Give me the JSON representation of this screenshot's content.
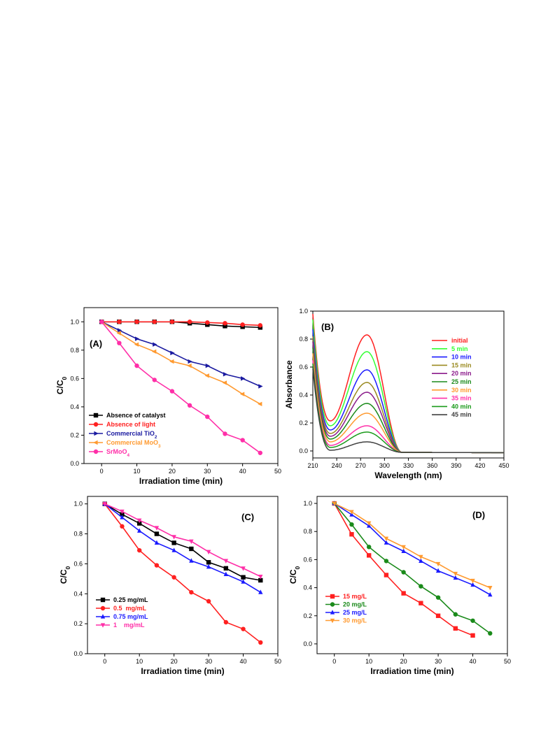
{
  "chart_data": [
    {
      "panel": "(A)",
      "type": "line",
      "xlabel": "Irradiation time (min)",
      "ylabel": "C/C0",
      "xlim": [
        -5,
        50
      ],
      "ylim": [
        0,
        1.1
      ],
      "xticks": [
        0,
        10,
        20,
        30,
        40,
        50
      ],
      "yticks": [
        0.0,
        0.2,
        0.4,
        0.6,
        0.8,
        1.0
      ],
      "legend": "bottom-left",
      "series": [
        {
          "name": "Absence of catalyst",
          "color": "#000000",
          "marker": "square",
          "x": [
            0,
            5,
            10,
            15,
            20,
            25,
            30,
            35,
            40,
            45
          ],
          "y": [
            1.0,
            1.0,
            1.0,
            1.0,
            1.0,
            0.99,
            0.98,
            0.97,
            0.965,
            0.96
          ]
        },
        {
          "name": "Absence of light",
          "color": "#ff2020",
          "marker": "circle",
          "x": [
            0,
            5,
            10,
            15,
            20,
            25,
            30,
            35,
            40,
            45
          ],
          "y": [
            1.0,
            1.0,
            1.0,
            1.0,
            1.0,
            1.0,
            0.995,
            0.99,
            0.98,
            0.975
          ]
        },
        {
          "name": "Commercial TiO2",
          "color": "#1a1aa0",
          "marker": "tri-right",
          "x": [
            0,
            5,
            10,
            15,
            20,
            25,
            30,
            35,
            40,
            45
          ],
          "y": [
            1.0,
            0.94,
            0.88,
            0.84,
            0.78,
            0.72,
            0.69,
            0.63,
            0.6,
            0.545
          ]
        },
        {
          "name": "Commercial MoO3",
          "color": "#ff9a30",
          "marker": "tri-left",
          "x": [
            0,
            5,
            10,
            15,
            20,
            25,
            30,
            35,
            40,
            45
          ],
          "y": [
            1.0,
            0.92,
            0.84,
            0.79,
            0.72,
            0.69,
            0.62,
            0.57,
            0.49,
            0.42
          ]
        },
        {
          "name": "SrMoO4",
          "color": "#ff2fa8",
          "marker": "circle",
          "x": [
            0,
            5,
            10,
            15,
            20,
            25,
            30,
            35,
            40,
            45
          ],
          "y": [
            1.0,
            0.85,
            0.69,
            0.59,
            0.51,
            0.41,
            0.33,
            0.21,
            0.165,
            0.075
          ]
        }
      ]
    },
    {
      "panel": "(B)",
      "type": "line",
      "xlabel": "Wavelength (nm)",
      "ylabel": "Absorbance",
      "xlim": [
        210,
        450
      ],
      "ylim": [
        -0.05,
        1.0
      ],
      "xticks": [
        210,
        240,
        270,
        300,
        330,
        360,
        390,
        420,
        450
      ],
      "yticks": [
        0.0,
        0.2,
        0.4,
        0.6,
        0.8,
        1.0
      ],
      "legend": "top-right",
      "peak_wavelength": 278,
      "series": [
        {
          "name": "initial",
          "color": "#ff2020",
          "peak": 0.83,
          "valley": 0.215
        },
        {
          "name": "5 min",
          "color": "#33ff33",
          "peak": 0.71,
          "valley": 0.18
        },
        {
          "name": "10 min",
          "color": "#1a1aff",
          "peak": 0.58,
          "valley": 0.15
        },
        {
          "name": "15 min",
          "color": "#9a8a20",
          "peak": 0.49,
          "valley": 0.125
        },
        {
          "name": "20 min",
          "color": "#8a1a8a",
          "peak": 0.42,
          "valley": 0.105
        },
        {
          "name": "25 min",
          "color": "#1a8a1a",
          "peak": 0.34,
          "valley": 0.085
        },
        {
          "name": "30 min",
          "color": "#ff9a30",
          "peak": 0.27,
          "valley": 0.065
        },
        {
          "name": "35 min",
          "color": "#ff2fa8",
          "peak": 0.18,
          "valley": 0.04
        },
        {
          "name": "40 min",
          "color": "#1a9a1a",
          "peak": 0.135,
          "valley": 0.025
        },
        {
          "name": "45 min",
          "color": "#404040",
          "peak": 0.065,
          "valley": 0.005
        }
      ]
    },
    {
      "panel": "(C)",
      "type": "line",
      "xlabel": "Irradiation time (min)",
      "ylabel": "C/C0",
      "xlim": [
        -5,
        50
      ],
      "ylim": [
        0,
        1.05
      ],
      "xticks": [
        0,
        10,
        20,
        30,
        40,
        50
      ],
      "yticks": [
        0.0,
        0.2,
        0.4,
        0.6,
        0.8,
        1.0
      ],
      "legend": "bottom-left",
      "series": [
        {
          "name": "0.25 mg/mL",
          "color": "#000000",
          "marker": "square",
          "x": [
            0,
            5,
            10,
            15,
            20,
            25,
            30,
            35,
            40,
            45
          ],
          "y": [
            1.0,
            0.93,
            0.87,
            0.8,
            0.74,
            0.7,
            0.61,
            0.57,
            0.51,
            0.49
          ]
        },
        {
          "name": "0.5  mg/mL",
          "color": "#ff2020",
          "marker": "circle",
          "x": [
            0,
            5,
            10,
            15,
            20,
            25,
            30,
            35,
            40,
            45
          ],
          "y": [
            1.0,
            0.85,
            0.69,
            0.59,
            0.51,
            0.41,
            0.35,
            0.21,
            0.165,
            0.075
          ]
        },
        {
          "name": "0.75 mg/mL",
          "color": "#1a1aff",
          "marker": "tri-up",
          "x": [
            0,
            5,
            10,
            15,
            20,
            25,
            30,
            35,
            40,
            45
          ],
          "y": [
            1.0,
            0.91,
            0.82,
            0.74,
            0.69,
            0.62,
            0.58,
            0.53,
            0.48,
            0.41
          ]
        },
        {
          "name": "1    mg/mL",
          "color": "#ff2fa8",
          "marker": "tri-down",
          "x": [
            0,
            5,
            10,
            15,
            20,
            25,
            30,
            35,
            40,
            45
          ],
          "y": [
            1.0,
            0.95,
            0.89,
            0.84,
            0.78,
            0.75,
            0.68,
            0.62,
            0.57,
            0.515
          ]
        }
      ]
    },
    {
      "panel": "(D)",
      "type": "line",
      "xlabel": "Irradiation time (min)",
      "ylabel": "C/C0",
      "xlim": [
        -5,
        50
      ],
      "ylim": [
        -0.07,
        1.05
      ],
      "xticks": [
        0,
        10,
        20,
        30,
        40,
        50
      ],
      "yticks": [
        0.0,
        0.2,
        0.4,
        0.6,
        0.8,
        1.0
      ],
      "legend": "bottom-left",
      "series": [
        {
          "name": "15 mg/L",
          "color": "#ff2020",
          "marker": "square",
          "x": [
            0,
            5,
            10,
            15,
            20,
            25,
            30,
            35,
            40
          ],
          "y": [
            1.0,
            0.78,
            0.63,
            0.49,
            0.36,
            0.29,
            0.2,
            0.11,
            0.06
          ]
        },
        {
          "name": "20 mg/L",
          "color": "#1a8a1a",
          "marker": "circle",
          "x": [
            0,
            5,
            10,
            15,
            20,
            25,
            30,
            35,
            40,
            45
          ],
          "y": [
            1.0,
            0.85,
            0.69,
            0.59,
            0.51,
            0.41,
            0.33,
            0.21,
            0.165,
            0.075
          ]
        },
        {
          "name": "25 mg/L",
          "color": "#1a1aff",
          "marker": "tri-up",
          "x": [
            0,
            5,
            10,
            15,
            20,
            25,
            30,
            35,
            40,
            45
          ],
          "y": [
            1.0,
            0.92,
            0.84,
            0.72,
            0.66,
            0.59,
            0.52,
            0.47,
            0.42,
            0.35
          ]
        },
        {
          "name": "30 mg/L",
          "color": "#ff9a30",
          "marker": "tri-down",
          "x": [
            0,
            5,
            10,
            15,
            20,
            25,
            30,
            35,
            40,
            45
          ],
          "y": [
            1.0,
            0.94,
            0.86,
            0.75,
            0.69,
            0.62,
            0.57,
            0.5,
            0.45,
            0.4
          ]
        }
      ]
    }
  ]
}
